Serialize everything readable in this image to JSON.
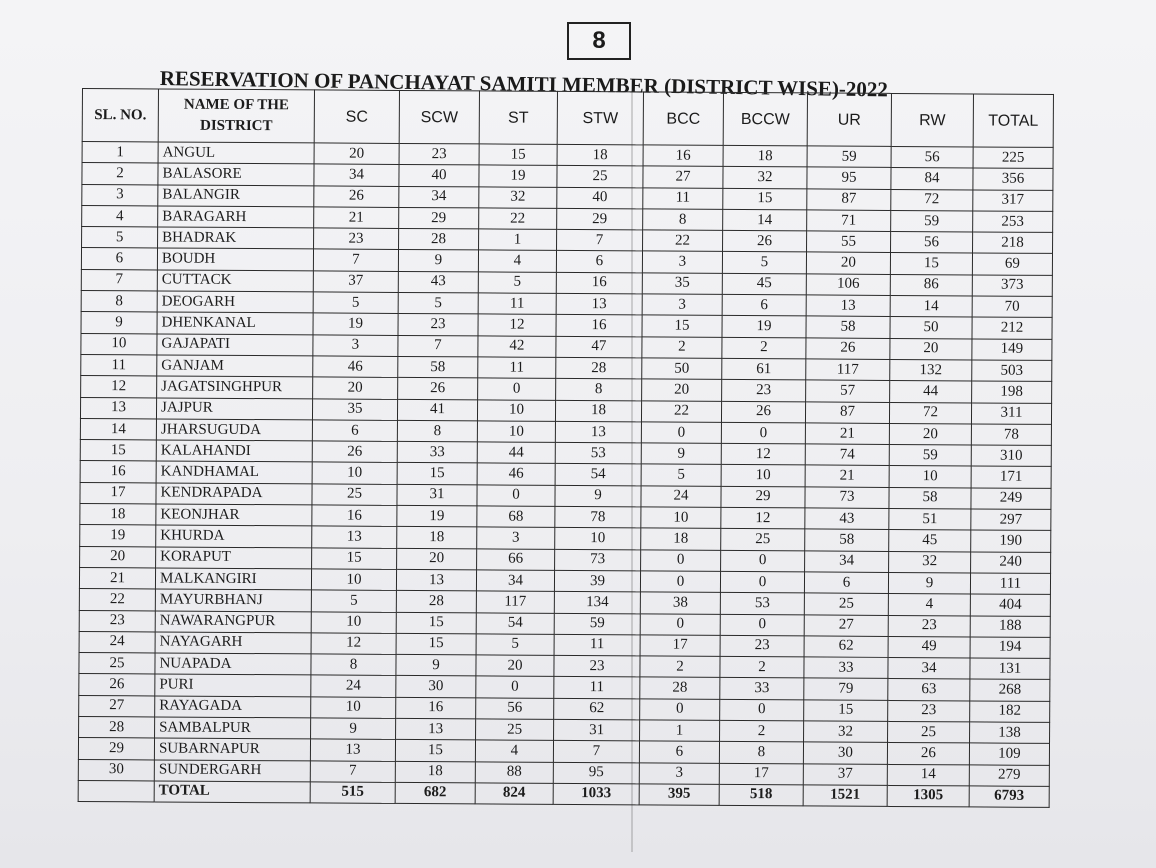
{
  "page_number": "8",
  "title": "RESERVATION OF PANCHAYAT SAMITI MEMBER (DISTRICT WISE)-2022",
  "columns": {
    "sl_no": "SL. NO.",
    "district": "NAME OF THE DISTRICT",
    "sc": "SC",
    "scw": "SCW",
    "st": "ST",
    "stw": "STW",
    "bcc": "BCC",
    "bccw": "BCCW",
    "ur": "UR",
    "rw": "RW",
    "total": "TOTAL"
  },
  "rows": [
    {
      "sl": "1",
      "district": "ANGUL",
      "sc": "20",
      "scw": "23",
      "st": "15",
      "stw": "18",
      "bcc": "16",
      "bccw": "18",
      "ur": "59",
      "rw": "56",
      "total": "225"
    },
    {
      "sl": "2",
      "district": "BALASORE",
      "sc": "34",
      "scw": "40",
      "st": "19",
      "stw": "25",
      "bcc": "27",
      "bccw": "32",
      "ur": "95",
      "rw": "84",
      "total": "356"
    },
    {
      "sl": "3",
      "district": "BALANGIR",
      "sc": "26",
      "scw": "34",
      "st": "32",
      "stw": "40",
      "bcc": "11",
      "bccw": "15",
      "ur": "87",
      "rw": "72",
      "total": "317"
    },
    {
      "sl": "4",
      "district": "BARAGARH",
      "sc": "21",
      "scw": "29",
      "st": "22",
      "stw": "29",
      "bcc": "8",
      "bccw": "14",
      "ur": "71",
      "rw": "59",
      "total": "253"
    },
    {
      "sl": "5",
      "district": "BHADRAK",
      "sc": "23",
      "scw": "28",
      "st": "1",
      "stw": "7",
      "bcc": "22",
      "bccw": "26",
      "ur": "55",
      "rw": "56",
      "total": "218"
    },
    {
      "sl": "6",
      "district": "BOUDH",
      "sc": "7",
      "scw": "9",
      "st": "4",
      "stw": "6",
      "bcc": "3",
      "bccw": "5",
      "ur": "20",
      "rw": "15",
      "total": "69"
    },
    {
      "sl": "7",
      "district": "CUTTACK",
      "sc": "37",
      "scw": "43",
      "st": "5",
      "stw": "16",
      "bcc": "35",
      "bccw": "45",
      "ur": "106",
      "rw": "86",
      "total": "373"
    },
    {
      "sl": "8",
      "district": "DEOGARH",
      "sc": "5",
      "scw": "5",
      "st": "11",
      "stw": "13",
      "bcc": "3",
      "bccw": "6",
      "ur": "13",
      "rw": "14",
      "total": "70"
    },
    {
      "sl": "9",
      "district": "DHENKANAL",
      "sc": "19",
      "scw": "23",
      "st": "12",
      "stw": "16",
      "bcc": "15",
      "bccw": "19",
      "ur": "58",
      "rw": "50",
      "total": "212"
    },
    {
      "sl": "10",
      "district": "GAJAPATI",
      "sc": "3",
      "scw": "7",
      "st": "42",
      "stw": "47",
      "bcc": "2",
      "bccw": "2",
      "ur": "26",
      "rw": "20",
      "total": "149"
    },
    {
      "sl": "11",
      "district": "GANJAM",
      "sc": "46",
      "scw": "58",
      "st": "11",
      "stw": "28",
      "bcc": "50",
      "bccw": "61",
      "ur": "117",
      "rw": "132",
      "total": "503"
    },
    {
      "sl": "12",
      "district": "JAGATSINGHPUR",
      "sc": "20",
      "scw": "26",
      "st": "0",
      "stw": "8",
      "bcc": "20",
      "bccw": "23",
      "ur": "57",
      "rw": "44",
      "total": "198"
    },
    {
      "sl": "13",
      "district": "JAJPUR",
      "sc": "35",
      "scw": "41",
      "st": "10",
      "stw": "18",
      "bcc": "22",
      "bccw": "26",
      "ur": "87",
      "rw": "72",
      "total": "311"
    },
    {
      "sl": "14",
      "district": "JHARSUGUDA",
      "sc": "6",
      "scw": "8",
      "st": "10",
      "stw": "13",
      "bcc": "0",
      "bccw": "0",
      "ur": "21",
      "rw": "20",
      "total": "78"
    },
    {
      "sl": "15",
      "district": "KALAHANDI",
      "sc": "26",
      "scw": "33",
      "st": "44",
      "stw": "53",
      "bcc": "9",
      "bccw": "12",
      "ur": "74",
      "rw": "59",
      "total": "310"
    },
    {
      "sl": "16",
      "district": "KANDHAMAL",
      "sc": "10",
      "scw": "15",
      "st": "46",
      "stw": "54",
      "bcc": "5",
      "bccw": "10",
      "ur": "21",
      "rw": "10",
      "total": "171"
    },
    {
      "sl": "17",
      "district": "KENDRAPADA",
      "sc": "25",
      "scw": "31",
      "st": "0",
      "stw": "9",
      "bcc": "24",
      "bccw": "29",
      "ur": "73",
      "rw": "58",
      "total": "249"
    },
    {
      "sl": "18",
      "district": "KEONJHAR",
      "sc": "16",
      "scw": "19",
      "st": "68",
      "stw": "78",
      "bcc": "10",
      "bccw": "12",
      "ur": "43",
      "rw": "51",
      "total": "297"
    },
    {
      "sl": "19",
      "district": "KHURDA",
      "sc": "13",
      "scw": "18",
      "st": "3",
      "stw": "10",
      "bcc": "18",
      "bccw": "25",
      "ur": "58",
      "rw": "45",
      "total": "190"
    },
    {
      "sl": "20",
      "district": "KORAPUT",
      "sc": "15",
      "scw": "20",
      "st": "66",
      "stw": "73",
      "bcc": "0",
      "bccw": "0",
      "ur": "34",
      "rw": "32",
      "total": "240"
    },
    {
      "sl": "21",
      "district": "MALKANGIRI",
      "sc": "10",
      "scw": "13",
      "st": "34",
      "stw": "39",
      "bcc": "0",
      "bccw": "0",
      "ur": "6",
      "rw": "9",
      "total": "111"
    },
    {
      "sl": "22",
      "district": "MAYURBHANJ",
      "sc": "5",
      "scw": "28",
      "st": "117",
      "stw": "134",
      "bcc": "38",
      "bccw": "53",
      "ur": "25",
      "rw": "4",
      "total": "404"
    },
    {
      "sl": "23",
      "district": "NAWARANGPUR",
      "sc": "10",
      "scw": "15",
      "st": "54",
      "stw": "59",
      "bcc": "0",
      "bccw": "0",
      "ur": "27",
      "rw": "23",
      "total": "188"
    },
    {
      "sl": "24",
      "district": "NAYAGARH",
      "sc": "12",
      "scw": "15",
      "st": "5",
      "stw": "11",
      "bcc": "17",
      "bccw": "23",
      "ur": "62",
      "rw": "49",
      "total": "194"
    },
    {
      "sl": "25",
      "district": "NUAPADA",
      "sc": "8",
      "scw": "9",
      "st": "20",
      "stw": "23",
      "bcc": "2",
      "bccw": "2",
      "ur": "33",
      "rw": "34",
      "total": "131"
    },
    {
      "sl": "26",
      "district": "PURI",
      "sc": "24",
      "scw": "30",
      "st": "0",
      "stw": "11",
      "bcc": "28",
      "bccw": "33",
      "ur": "79",
      "rw": "63",
      "total": "268"
    },
    {
      "sl": "27",
      "district": "RAYAGADA",
      "sc": "10",
      "scw": "16",
      "st": "56",
      "stw": "62",
      "bcc": "0",
      "bccw": "0",
      "ur": "15",
      "rw": "23",
      "total": "182"
    },
    {
      "sl": "28",
      "district": "SAMBALPUR",
      "sc": "9",
      "scw": "13",
      "st": "25",
      "stw": "31",
      "bcc": "1",
      "bccw": "2",
      "ur": "32",
      "rw": "25",
      "total": "138"
    },
    {
      "sl": "29",
      "district": "SUBARNAPUR",
      "sc": "13",
      "scw": "15",
      "st": "4",
      "stw": "7",
      "bcc": "6",
      "bccw": "8",
      "ur": "30",
      "rw": "26",
      "total": "109"
    },
    {
      "sl": "30",
      "district": "SUNDERGARH",
      "sc": "7",
      "scw": "18",
      "st": "88",
      "stw": "95",
      "bcc": "3",
      "bccw": "17",
      "ur": "37",
      "rw": "14",
      "total": "279"
    }
  ],
  "totals": {
    "label": "TOTAL",
    "sc": "515",
    "scw": "682",
    "st": "824",
    "stw": "1033",
    "bcc": "395",
    "bccw": "518",
    "ur": "1521",
    "rw": "1305",
    "total": "6793"
  }
}
